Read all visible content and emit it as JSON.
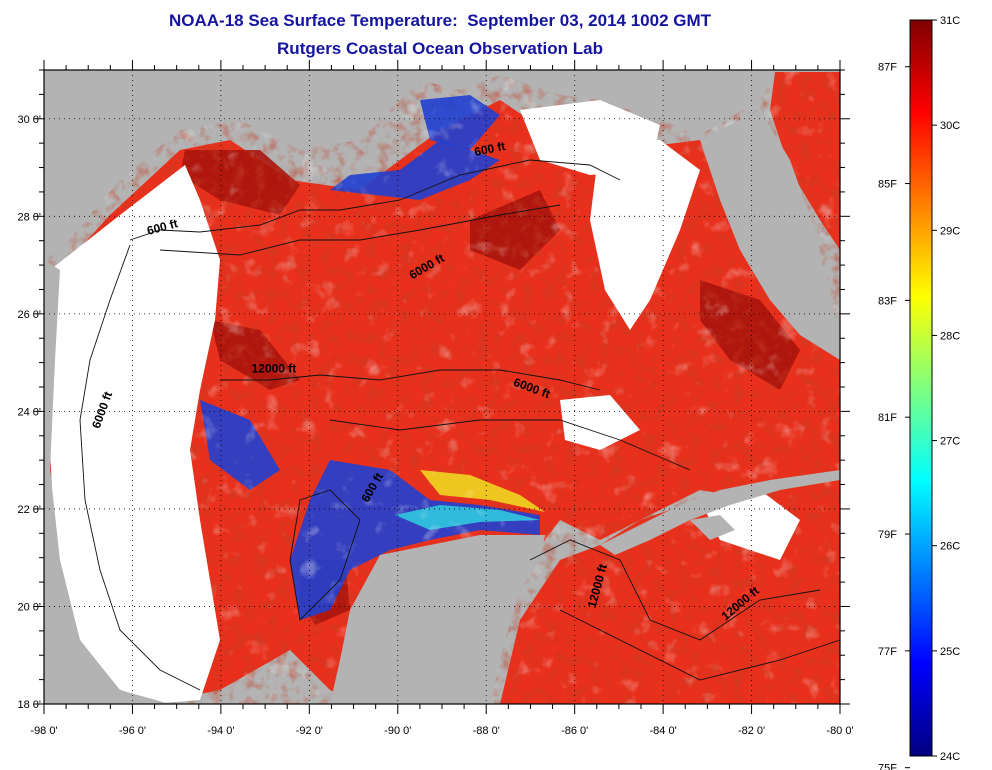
{
  "title": {
    "line1": "NOAA-18 Sea Surface Temperature:  September 03, 2014 1002 GMT",
    "line2": "Rutgers Coastal Ocean Observation Lab"
  },
  "map": {
    "lon_range": [
      -98,
      -80
    ],
    "lat_range": [
      18,
      31
    ],
    "lon_ticks": [
      "-98 0'",
      "-96 0'",
      "-94 0'",
      "-92 0'",
      "-90 0'",
      "-88 0'",
      "-86 0'",
      "-84 0'",
      "-82 0'",
      "-80 0'"
    ],
    "lat_ticks": [
      "18 0'",
      "20 0'",
      "22 0'",
      "24 0'",
      "26 0'",
      "28 0'",
      "30 0'"
    ],
    "colors": {
      "land": "#b3b3b3",
      "cloud": "#ffffff",
      "warm_water": "#e8301c",
      "hot_water": "#a8140c",
      "cool_water": "#2040d0"
    },
    "contour_labels": [
      {
        "text": "600 ft",
        "lon": -95.3,
        "lat": 27.7,
        "angle": -15
      },
      {
        "text": "6000 ft",
        "lon": -89.3,
        "lat": 26.9,
        "angle": -30
      },
      {
        "text": "600 ft",
        "lon": -87.9,
        "lat": 29.3,
        "angle": -12
      },
      {
        "text": "6000 ft",
        "lon": -96.6,
        "lat": 24.0,
        "angle": -70
      },
      {
        "text": "12000 ft",
        "lon": -92.8,
        "lat": 24.8,
        "angle": 0
      },
      {
        "text": "6000 ft",
        "lon": -87.0,
        "lat": 24.4,
        "angle": 20
      },
      {
        "text": "600 ft",
        "lon": -90.5,
        "lat": 22.4,
        "angle": -60
      },
      {
        "text": "12000 ft",
        "lon": -85.4,
        "lat": 20.4,
        "angle": -75
      },
      {
        "text": "12000 ft",
        "lon": -82.2,
        "lat": 20.0,
        "angle": -40
      }
    ]
  },
  "colorbar": {
    "stops": [
      "#00007f",
      "#0000ff",
      "#007fff",
      "#00ffff",
      "#7fff7f",
      "#ffff00",
      "#ff7f00",
      "#ff0000",
      "#7f0000"
    ],
    "celsius": {
      "min": 24,
      "max": 31,
      "labels": [
        "31C",
        "30C",
        "29C",
        "28C",
        "27C",
        "26C",
        "25C",
        "24C"
      ]
    },
    "fahrenheit": {
      "labels": [
        "87F",
        "85F",
        "83F",
        "81F",
        "79F",
        "77F",
        "75F"
      ]
    }
  }
}
